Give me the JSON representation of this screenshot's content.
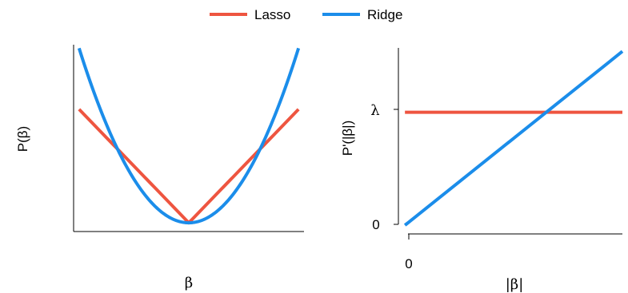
{
  "colors": {
    "lasso": "#EE5540",
    "ridge": "#1B8DEA",
    "axis": "#000000"
  },
  "legend": {
    "position": "top-center",
    "items": [
      {
        "label": "Lasso",
        "color": "#EE5540"
      },
      {
        "label": "Ridge",
        "color": "#1B8DEA"
      }
    ]
  },
  "chart_data": [
    {
      "type": "line",
      "title": "",
      "xlabel": "β",
      "ylabel": "P(β)",
      "xlim": [
        -1.05,
        1.05
      ],
      "ylim": [
        -0.05,
        1.02
      ],
      "x_ticks": [],
      "y_ticks": [],
      "series": [
        {
          "name": "Lasso",
          "function": "abs",
          "x": [
            -1,
            0,
            1
          ],
          "y": [
            0.65,
            0,
            0.65
          ]
        },
        {
          "name": "Ridge",
          "function": "square",
          "x": [
            -1,
            -0.5,
            0,
            0.5,
            1
          ],
          "y": [
            1,
            0.25,
            0,
            0.25,
            1
          ]
        }
      ]
    },
    {
      "type": "line",
      "title": "",
      "xlabel": "|β|",
      "ylabel": "P'(|β|)",
      "xlim": [
        -0.03,
        1.0
      ],
      "ylim": [
        -0.05,
        1.02
      ],
      "x_ticks": [
        {
          "value": 0,
          "label": "0"
        }
      ],
      "y_ticks": [
        {
          "value": 0,
          "label": "0"
        },
        {
          "value": 0.65,
          "label": "λ"
        }
      ],
      "series": [
        {
          "name": "Lasso",
          "x": [
            0,
            1
          ],
          "y": [
            0.65,
            0.65
          ]
        },
        {
          "name": "Ridge",
          "x": [
            0,
            1
          ],
          "y": [
            0,
            1
          ]
        }
      ]
    }
  ]
}
